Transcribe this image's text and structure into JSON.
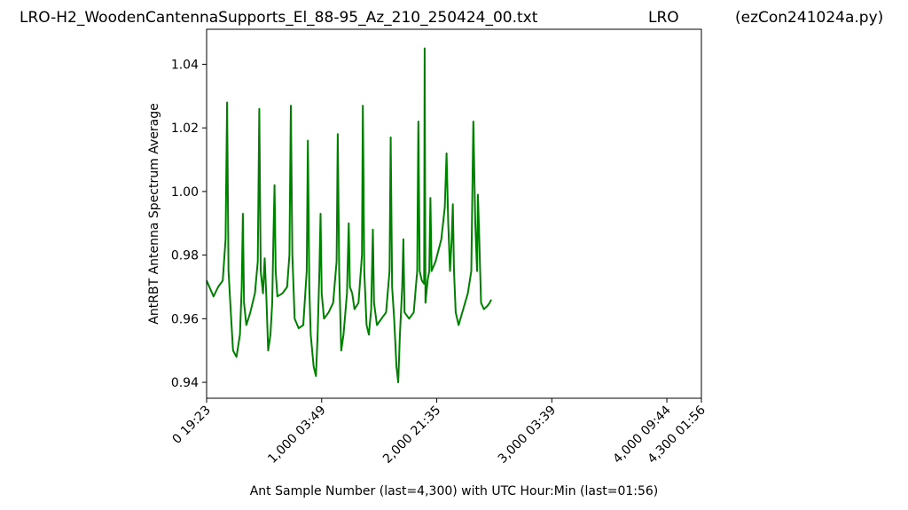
{
  "header": {
    "filename": "LRO-H2_WoodenCantennaSupports_El_88-95_Az_210_250424_00.txt",
    "station": "LRO",
    "program": "(ezCon241024a.py)"
  },
  "chart_data": {
    "type": "line",
    "xlabel": "Ant Sample Number (last=4,300) with UTC Hour:Min (last=01:56)",
    "ylabel": "AntRBT Antenna Spectrum Average",
    "xlim": [
      0,
      4300
    ],
    "ylim": [
      0.935,
      1.051
    ],
    "x_ticks": [
      {
        "value": 0,
        "label": "0  19:23"
      },
      {
        "value": 1000,
        "label": "1,000  03:49"
      },
      {
        "value": 2000,
        "label": "2,000  21:35"
      },
      {
        "value": 3000,
        "label": "3,000  03:39"
      },
      {
        "value": 4000,
        "label": "4,000  09:44"
      },
      {
        "value": 4300,
        "label": "4,300  01:56"
      }
    ],
    "y_ticks": [
      {
        "value": 0.94,
        "label": "0.94"
      },
      {
        "value": 0.96,
        "label": "0.96"
      },
      {
        "value": 0.98,
        "label": "0.98"
      },
      {
        "value": 1.0,
        "label": "1.00"
      },
      {
        "value": 1.02,
        "label": "1.02"
      },
      {
        "value": 1.04,
        "label": "1.04"
      }
    ],
    "grid": false,
    "legend": "none",
    "colors": {
      "line": "#008000",
      "axes": "#000000"
    },
    "series": [
      {
        "values": [
          [
            0,
            0.972
          ],
          [
            60,
            0.967
          ],
          [
            100,
            0.97
          ],
          [
            140,
            0.972
          ],
          [
            165,
            0.985
          ],
          [
            178,
            1.028
          ],
          [
            190,
            0.975
          ],
          [
            210,
            0.962
          ],
          [
            230,
            0.95
          ],
          [
            260,
            0.948
          ],
          [
            290,
            0.955
          ],
          [
            305,
            0.97
          ],
          [
            315,
            0.993
          ],
          [
            325,
            0.965
          ],
          [
            345,
            0.958
          ],
          [
            380,
            0.962
          ],
          [
            420,
            0.968
          ],
          [
            445,
            0.978
          ],
          [
            458,
            1.026
          ],
          [
            470,
            0.975
          ],
          [
            490,
            0.968
          ],
          [
            505,
            0.979
          ],
          [
            520,
            0.966
          ],
          [
            535,
            0.95
          ],
          [
            555,
            0.955
          ],
          [
            570,
            0.965
          ],
          [
            580,
            0.985
          ],
          [
            590,
            1.002
          ],
          [
            600,
            0.975
          ],
          [
            615,
            0.967
          ],
          [
            660,
            0.968
          ],
          [
            700,
            0.97
          ],
          [
            720,
            0.98
          ],
          [
            732,
            1.027
          ],
          [
            745,
            0.98
          ],
          [
            765,
            0.96
          ],
          [
            800,
            0.957
          ],
          [
            840,
            0.958
          ],
          [
            870,
            0.975
          ],
          [
            880,
            1.016
          ],
          [
            892,
            0.97
          ],
          [
            905,
            0.955
          ],
          [
            930,
            0.945
          ],
          [
            950,
            0.942
          ],
          [
            965,
            0.955
          ],
          [
            980,
            0.975
          ],
          [
            990,
            0.993
          ],
          [
            1000,
            0.968
          ],
          [
            1020,
            0.96
          ],
          [
            1060,
            0.962
          ],
          [
            1100,
            0.965
          ],
          [
            1130,
            0.978
          ],
          [
            1140,
            1.018
          ],
          [
            1152,
            0.975
          ],
          [
            1170,
            0.95
          ],
          [
            1190,
            0.955
          ],
          [
            1220,
            0.968
          ],
          [
            1235,
            0.99
          ],
          [
            1245,
            0.97
          ],
          [
            1265,
            0.968
          ],
          [
            1285,
            0.963
          ],
          [
            1320,
            0.965
          ],
          [
            1350,
            0.98
          ],
          [
            1358,
            1.027
          ],
          [
            1370,
            0.975
          ],
          [
            1390,
            0.958
          ],
          [
            1410,
            0.955
          ],
          [
            1430,
            0.963
          ],
          [
            1445,
            0.988
          ],
          [
            1455,
            0.965
          ],
          [
            1480,
            0.958
          ],
          [
            1520,
            0.96
          ],
          [
            1560,
            0.962
          ],
          [
            1590,
            0.975
          ],
          [
            1600,
            1.017
          ],
          [
            1612,
            0.97
          ],
          [
            1630,
            0.96
          ],
          [
            1650,
            0.945
          ],
          [
            1665,
            0.94
          ],
          [
            1680,
            0.955
          ],
          [
            1700,
            0.97
          ],
          [
            1710,
            0.985
          ],
          [
            1720,
            0.962
          ],
          [
            1760,
            0.96
          ],
          [
            1800,
            0.962
          ],
          [
            1830,
            0.975
          ],
          [
            1840,
            1.022
          ],
          [
            1852,
            0.975
          ],
          [
            1870,
            0.972
          ],
          [
            1890,
            0.971
          ],
          [
            1895,
            1.045
          ],
          [
            1902,
            0.965
          ],
          [
            1920,
            0.972
          ],
          [
            1935,
            0.975
          ],
          [
            1945,
            0.998
          ],
          [
            1955,
            0.975
          ],
          [
            1990,
            0.978
          ],
          [
            2040,
            0.985
          ],
          [
            2070,
            0.995
          ],
          [
            2085,
            1.012
          ],
          [
            2100,
            0.99
          ],
          [
            2115,
            0.975
          ],
          [
            2130,
            0.985
          ],
          [
            2140,
            0.996
          ],
          [
            2150,
            0.975
          ],
          [
            2165,
            0.962
          ],
          [
            2190,
            0.958
          ],
          [
            2230,
            0.963
          ],
          [
            2270,
            0.968
          ],
          [
            2300,
            0.975
          ],
          [
            2318,
            1.022
          ],
          [
            2335,
            0.99
          ],
          [
            2350,
            0.975
          ],
          [
            2358,
            0.999
          ],
          [
            2370,
            0.985
          ],
          [
            2385,
            0.965
          ],
          [
            2410,
            0.963
          ],
          [
            2440,
            0.964
          ],
          [
            2460,
            0.965
          ],
          [
            2474,
            0.966
          ]
        ]
      }
    ]
  }
}
